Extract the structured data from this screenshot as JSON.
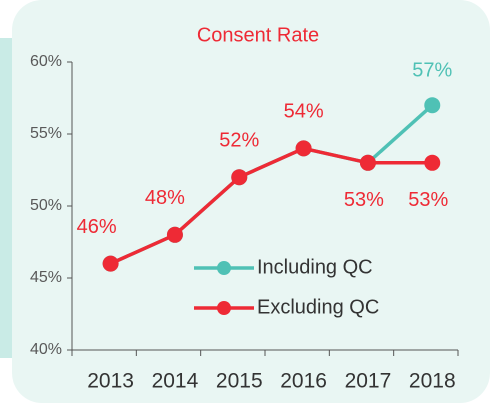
{
  "chart_data": {
    "type": "line",
    "title": "Consent Rate",
    "categories": [
      "2013",
      "2014",
      "2015",
      "2016",
      "2017",
      "2018"
    ],
    "series": [
      {
        "name": "Including QC",
        "color": "#4fc1b5",
        "values": [
          46,
          48,
          52,
          54,
          53,
          57
        ],
        "value_labels": [
          null,
          null,
          null,
          null,
          null,
          "57%"
        ]
      },
      {
        "name": "Excluding QC",
        "color": "#ee2a35",
        "values": [
          46,
          48,
          52,
          54,
          53,
          53
        ],
        "value_labels": [
          "46%",
          "48%",
          "52%",
          "54%",
          "53%",
          "53%"
        ]
      }
    ],
    "ylim": [
      40,
      60
    ],
    "yticks": [
      {
        "value": 40,
        "label": "40%"
      },
      {
        "value": 45,
        "label": "45%"
      },
      {
        "value": 50,
        "label": "50%"
      },
      {
        "value": 55,
        "label": "55%"
      },
      {
        "value": 60,
        "label": "60%"
      }
    ],
    "grid": false,
    "legend": "inside-right"
  }
}
